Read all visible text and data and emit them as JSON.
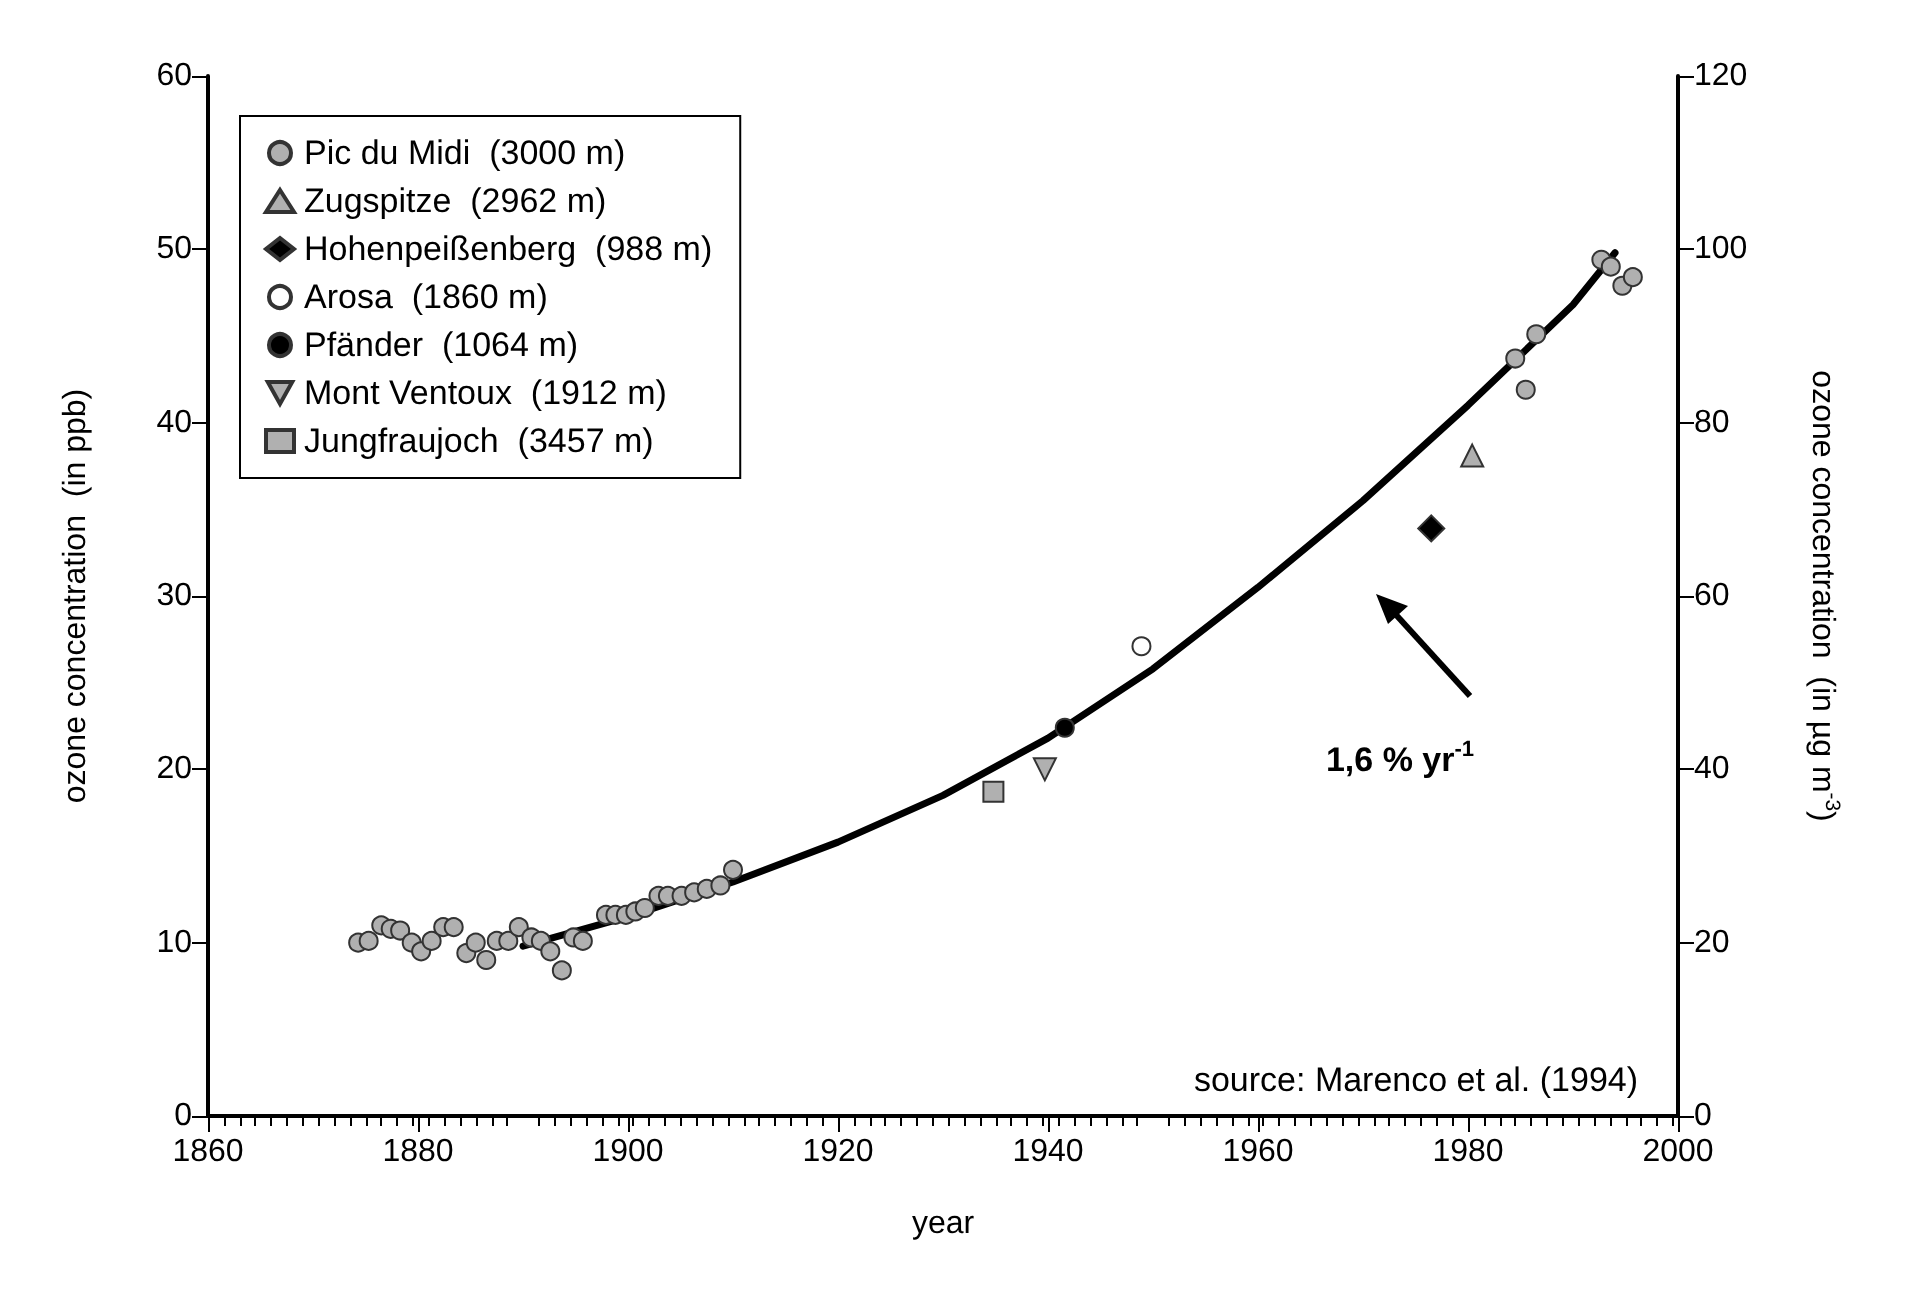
{
  "chart_data": {
    "type": "scatter",
    "xlabel": "year",
    "ylabel": "ozone concentration  (in ppb)",
    "y2label": "ozone concentration  (in µg m$^{-3}$)",
    "xlim": [
      1860,
      2000
    ],
    "xticks": [
      1860,
      1880,
      1900,
      1920,
      1940,
      1960,
      1980,
      2000
    ],
    "ylim": [
      0,
      60
    ],
    "yticks": [
      0,
      10,
      20,
      30,
      40,
      50,
      60
    ],
    "y2lim": [
      0,
      120
    ],
    "y2ticks": [
      0,
      20,
      40,
      60,
      80,
      100,
      120
    ],
    "grid": false,
    "legend": "top left",
    "annotations": [
      "1,6 % yr$^{-1}$",
      "source: Marenco et al. (1994)"
    ],
    "series": [
      {
        "name": "Pic du Midi  (3000 m)",
        "color": "#b0b0b0",
        "marker": "circle",
        "x": [
          1874.3,
          1875.3,
          1876.5,
          1877.4,
          1878.3,
          1879.4,
          1880.3,
          1881.3,
          1882.4,
          1883.4,
          1884.6,
          1885.5,
          1886.5,
          1887.5,
          1888.6,
          1889.6,
          1890.8,
          1891.7,
          1892.6,
          1893.7,
          1894.8,
          1895.7,
          1897.9,
          1898.8,
          1899.8,
          1900.7,
          1901.6,
          1902.9,
          1903.8,
          1905.1,
          1906.3,
          1907.5,
          1908.8,
          1910,
          1984.5,
          1985.5,
          1986.5,
          1992.7,
          1993.6,
          1994.7,
          1995.7
        ],
        "values": [
          10.0,
          10.1,
          11.0,
          10.8,
          10.7,
          10.0,
          9.5,
          10.1,
          10.9,
          10.9,
          9.4,
          10.0,
          9.0,
          10.1,
          10.1,
          10.9,
          10.3,
          10.1,
          9.5,
          8.4,
          10.3,
          10.1,
          11.6,
          11.6,
          11.6,
          11.8,
          12.0,
          12.7,
          12.7,
          12.7,
          12.9,
          13.1,
          13.3,
          14.2,
          43.7,
          41.9,
          45.1,
          49.4,
          49.0,
          47.9,
          48.4
        ]
      },
      {
        "name": "Zugspitze  (2962 m)",
        "color": "#b0b0b0",
        "marker": "triangle",
        "x": [
          1980.4
        ],
        "values": [
          38.1
        ]
      },
      {
        "name": "Hohenpeißenberg  (988 m)",
        "color": "#000000",
        "marker": "diamond",
        "x": [
          1976.5
        ],
        "values": [
          33.9
        ]
      },
      {
        "name": "Arosa  (1860 m)",
        "color": "#ffffff",
        "marker": "circle",
        "x": [
          1948.9
        ],
        "values": [
          27.1
        ]
      },
      {
        "name": "Pfänder  (1064 m)",
        "color": "#000000",
        "marker": "circle",
        "x": [
          1941.6
        ],
        "values": [
          22.4
        ]
      },
      {
        "name": "Mont Ventoux  (1912 m)",
        "color": "#b0b0b0",
        "marker": "triangle-down",
        "x": [
          1939.7
        ],
        "values": [
          20.0
        ]
      },
      {
        "name": "Jungfraujoch  (3457 m)",
        "color": "#b0b0b0",
        "marker": "square",
        "x": [
          1934.8
        ],
        "values": [
          18.7
        ]
      },
      {
        "type": "line",
        "color": "#000000",
        "marker": "none",
        "line_style": "solid",
        "x": [
          1890,
          1900,
          1910,
          1920,
          1930,
          1940,
          1950,
          1960,
          1970,
          1980,
          1990,
          1994
        ],
        "values": [
          9.8,
          11.5,
          13.5,
          15.8,
          18.5,
          21.8,
          25.8,
          30.5,
          35.5,
          41,
          46.8,
          49.8
        ]
      }
    ]
  }
}
